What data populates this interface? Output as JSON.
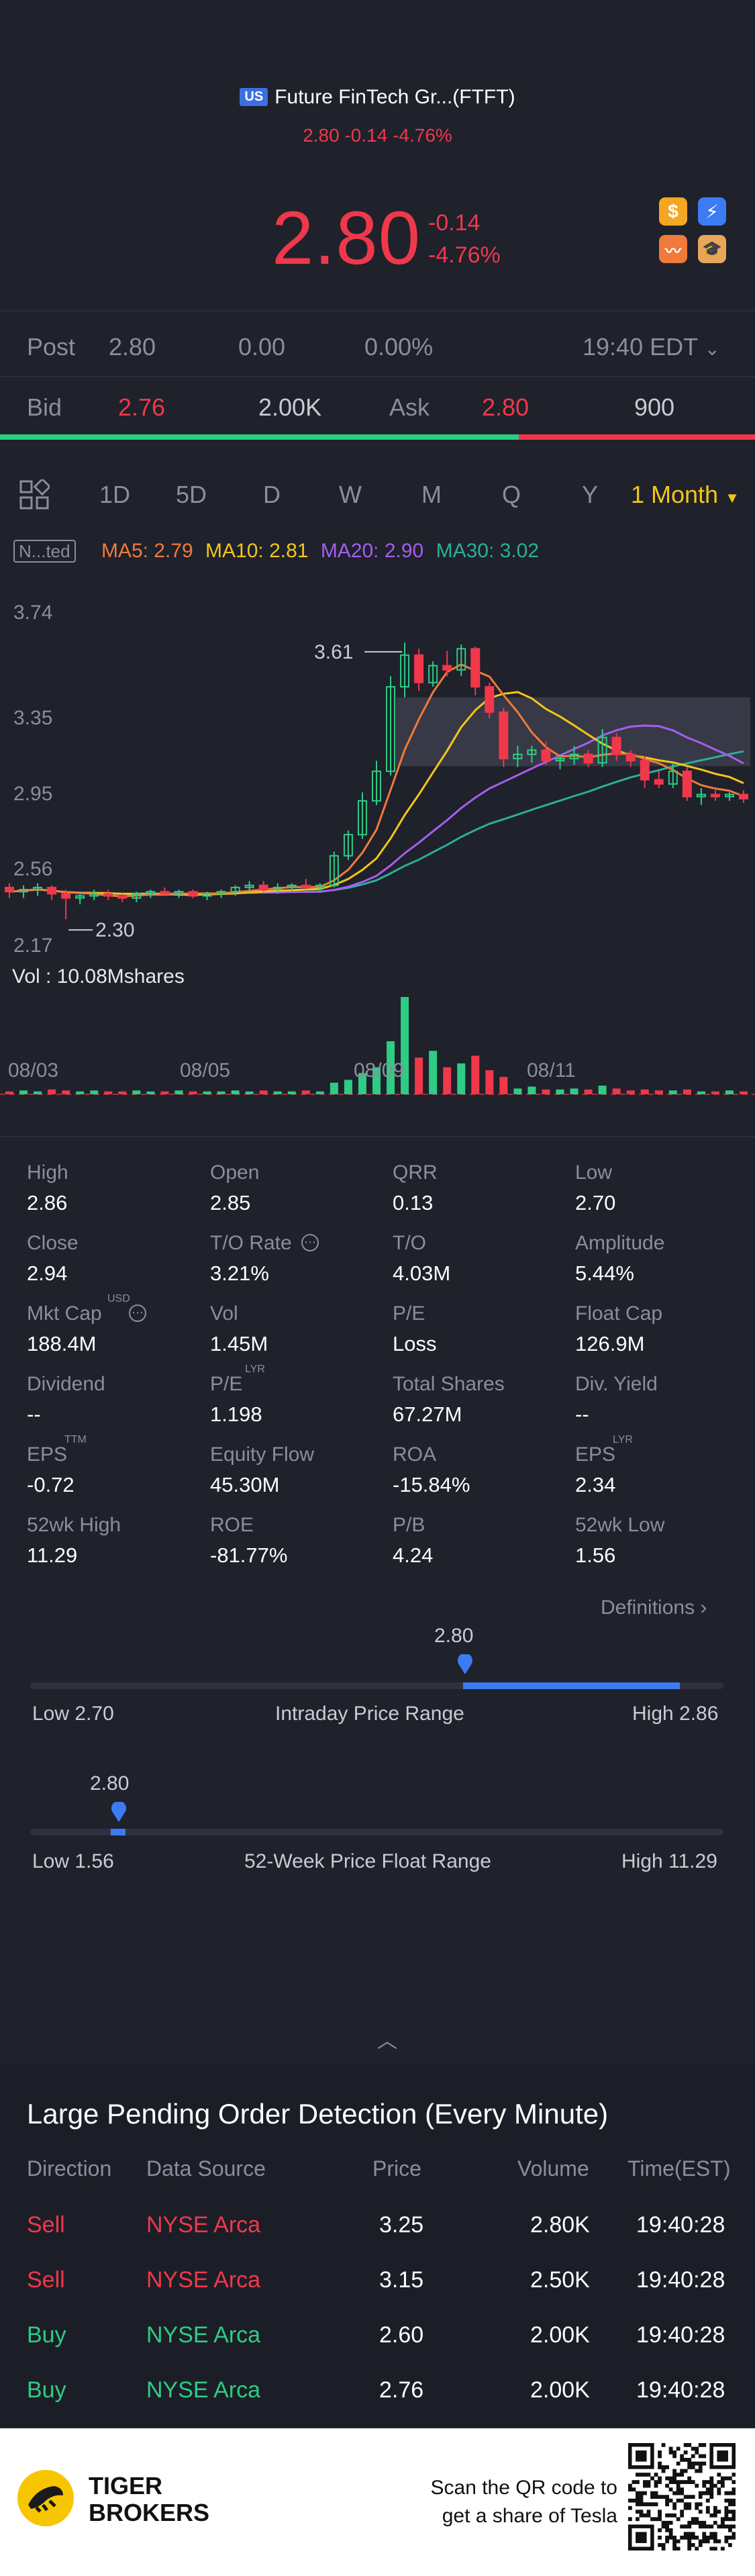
{
  "header": {
    "market_badge": "US",
    "title": "Future FinTech Gr...(FTFT)",
    "subtitle": "2.80 -0.14 -4.76%",
    "price": "2.80",
    "change": "-0.14",
    "change_pct": "-4.76%",
    "icons": [
      "dollar-icon",
      "lightning-icon",
      "chart-icon",
      "graduation-icon"
    ]
  },
  "post": {
    "label": "Post",
    "price": "2.80",
    "change": "0.00",
    "pct": "0.00%",
    "time": "19:40 EDT"
  },
  "bidask": {
    "bid_label": "Bid",
    "bid_price": "2.76",
    "bid_size": "2.00K",
    "ask_label": "Ask",
    "ask_price": "2.80",
    "ask_size": "900",
    "bid_share": 0.687
  },
  "tabs": [
    "1D",
    "5D",
    "D",
    "W",
    "M",
    "Q",
    "Y",
    "1 Month"
  ],
  "ma": {
    "nted": "N...ted",
    "ma5": "MA5: 2.79",
    "ma10": "MA10: 2.81",
    "ma20": "MA20: 2.90",
    "ma30": "MA30: 3.02"
  },
  "chart_data": {
    "type": "candlestick",
    "y_ticks": [
      "3.74",
      "3.35",
      "2.95",
      "2.56",
      "2.17"
    ],
    "ylim": [
      2.17,
      3.74
    ],
    "x_ticks": [
      "08/03",
      "08/05",
      "08/09",
      "08/11"
    ],
    "max_label": "3.61",
    "min_label": "2.30",
    "volume_label": "Vol  : 10.08Mshares",
    "candles": [
      [
        2.45,
        2.47,
        2.4,
        2.43
      ],
      [
        2.43,
        2.46,
        2.4,
        2.44
      ],
      [
        2.44,
        2.47,
        2.41,
        2.45
      ],
      [
        2.45,
        2.46,
        2.39,
        2.42
      ],
      [
        2.42,
        2.44,
        2.3,
        2.4
      ],
      [
        2.4,
        2.43,
        2.37,
        2.41
      ],
      [
        2.41,
        2.44,
        2.39,
        2.42
      ],
      [
        2.42,
        2.44,
        2.39,
        2.41
      ],
      [
        2.41,
        2.42,
        2.38,
        2.4
      ],
      [
        2.4,
        2.43,
        2.38,
        2.42
      ],
      [
        2.42,
        2.44,
        2.4,
        2.43
      ],
      [
        2.43,
        2.45,
        2.41,
        2.42
      ],
      [
        2.42,
        2.44,
        2.4,
        2.43
      ],
      [
        2.43,
        2.44,
        2.4,
        2.41
      ],
      [
        2.41,
        2.43,
        2.39,
        2.42
      ],
      [
        2.42,
        2.44,
        2.4,
        2.43
      ],
      [
        2.43,
        2.46,
        2.41,
        2.45
      ],
      [
        2.45,
        2.48,
        2.43,
        2.46
      ],
      [
        2.46,
        2.48,
        2.43,
        2.44
      ],
      [
        2.44,
        2.47,
        2.42,
        2.45
      ],
      [
        2.45,
        2.47,
        2.43,
        2.46
      ],
      [
        2.46,
        2.49,
        2.44,
        2.45
      ],
      [
        2.45,
        2.47,
        2.43,
        2.46
      ],
      [
        2.46,
        2.62,
        2.45,
        2.6
      ],
      [
        2.6,
        2.72,
        2.58,
        2.7
      ],
      [
        2.7,
        2.9,
        2.68,
        2.86
      ],
      [
        2.86,
        3.05,
        2.84,
        3.0
      ],
      [
        3.0,
        3.45,
        2.98,
        3.4
      ],
      [
        3.4,
        3.61,
        3.35,
        3.55
      ],
      [
        3.55,
        3.58,
        3.38,
        3.42
      ],
      [
        3.42,
        3.52,
        3.4,
        3.5
      ],
      [
        3.5,
        3.57,
        3.45,
        3.48
      ],
      [
        3.48,
        3.6,
        3.45,
        3.58
      ],
      [
        3.58,
        3.59,
        3.36,
        3.4
      ],
      [
        3.4,
        3.42,
        3.25,
        3.28
      ],
      [
        3.28,
        3.3,
        3.02,
        3.06
      ],
      [
        3.06,
        3.12,
        3.02,
        3.08
      ],
      [
        3.08,
        3.12,
        3.04,
        3.1
      ],
      [
        3.1,
        3.14,
        3.03,
        3.05
      ],
      [
        3.05,
        3.08,
        3.01,
        3.06
      ],
      [
        3.06,
        3.12,
        3.03,
        3.08
      ],
      [
        3.08,
        3.1,
        3.02,
        3.04
      ],
      [
        3.04,
        3.2,
        3.02,
        3.16
      ],
      [
        3.16,
        3.18,
        3.05,
        3.08
      ],
      [
        3.08,
        3.1,
        3.02,
        3.05
      ],
      [
        3.05,
        3.07,
        2.92,
        2.96
      ],
      [
        2.96,
        3.0,
        2.92,
        2.94
      ],
      [
        2.94,
        3.04,
        2.92,
        3.0
      ],
      [
        3.0,
        3.02,
        2.86,
        2.88
      ],
      [
        2.88,
        2.92,
        2.84,
        2.89
      ],
      [
        2.89,
        2.91,
        2.86,
        2.88
      ],
      [
        2.88,
        2.9,
        2.86,
        2.89
      ],
      [
        2.89,
        2.91,
        2.85,
        2.87
      ]
    ],
    "volume": [
      0.3,
      0.4,
      0.3,
      0.5,
      0.4,
      0.3,
      0.4,
      0.3,
      0.3,
      0.4,
      0.3,
      0.3,
      0.4,
      0.3,
      0.3,
      0.3,
      0.4,
      0.3,
      0.4,
      0.3,
      0.3,
      0.4,
      0.3,
      1.2,
      1.5,
      2.2,
      2.8,
      5.5,
      10.08,
      3.8,
      4.5,
      2.8,
      3.2,
      4.0,
      2.5,
      1.8,
      0.6,
      0.8,
      0.5,
      0.5,
      0.6,
      0.5,
      0.9,
      0.6,
      0.4,
      0.5,
      0.4,
      0.4,
      0.5,
      0.3,
      0.3,
      0.4,
      0.3
    ]
  },
  "stats": [
    {
      "label": "High",
      "value": "2.86"
    },
    {
      "label": "Open",
      "value": "2.85"
    },
    {
      "label": "QRR",
      "value": "0.13"
    },
    {
      "label": "Low",
      "value": "2.70"
    },
    {
      "label": "Close",
      "value": "2.94"
    },
    {
      "label": "T/O Rate",
      "value": "3.21%"
    },
    {
      "label": "T/O",
      "value": "4.03M"
    },
    {
      "label": "Amplitude",
      "value": "5.44%"
    },
    {
      "label": "Mkt Cap",
      "value": "188.4M"
    },
    {
      "label": "Vol",
      "value": "1.45M"
    },
    {
      "label": "P/E",
      "value": "Loss"
    },
    {
      "label": "Float Cap",
      "value": "126.9M"
    },
    {
      "label": "Dividend",
      "value": "--"
    },
    {
      "label": "P/E",
      "value": "1.198"
    },
    {
      "label": "Total Shares",
      "value": "67.27M"
    },
    {
      "label": "Div. Yield",
      "value": "--"
    },
    {
      "label": "EPS",
      "value": "-0.72"
    },
    {
      "label": "Equity Flow",
      "value": "45.30M"
    },
    {
      "label": "ROA",
      "value": "-15.84%"
    },
    {
      "label": "EPS",
      "value": "2.34"
    },
    {
      "label": "52wk High",
      "value": "11.29"
    },
    {
      "label": "ROE",
      "value": "-81.77%"
    },
    {
      "label": "P/B",
      "value": "4.24"
    },
    {
      "label": "52wk Low",
      "value": "1.56"
    }
  ],
  "stat_sups": {
    "mktcap": "USD",
    "pe_lyr": "LYR",
    "eps_ttm": "TTM",
    "eps_lyr": "LYR"
  },
  "definitions": "Definitions",
  "ranges": {
    "intraday": {
      "marker": "2.80",
      "low": "Low 2.70",
      "title": "Intraday Price Range",
      "high": "High 2.86",
      "pos": 0.625
    },
    "week52": {
      "marker": "2.80",
      "low": "Low 1.56",
      "title": "52-Week Price Float Range",
      "high": "High 11.29",
      "pos": 0.127
    }
  },
  "pending": {
    "title": "Large Pending Order Detection (Every Minute)",
    "headers": [
      "Direction",
      "Data Source",
      "Price",
      "Volume",
      "Time(EST)"
    ],
    "rows": [
      {
        "dir": "Sell",
        "src": "NYSE Arca",
        "price": "3.25",
        "vol": "2.80K",
        "time": "19:40:28"
      },
      {
        "dir": "Sell",
        "src": "NYSE Arca",
        "price": "3.15",
        "vol": "2.50K",
        "time": "19:40:28"
      },
      {
        "dir": "Buy",
        "src": "NYSE Arca",
        "price": "2.60",
        "vol": "2.00K",
        "time": "19:40:28"
      },
      {
        "dir": "Buy",
        "src": "NYSE Arca",
        "price": "2.76",
        "vol": "2.00K",
        "time": "19:40:28"
      }
    ]
  },
  "footer": {
    "brand1": "TIGER",
    "brand2": "BROKERS",
    "scan1": "Scan the QR code to",
    "scan2": "get a share of Tesla"
  },
  "colors": {
    "red": "#f0384b",
    "green": "#2ecc84",
    "blue": "#3d7bf5",
    "ma5": "#f07a3a",
    "ma10": "#f2c619",
    "ma20": "#a55ef0",
    "ma30": "#28b09a"
  }
}
